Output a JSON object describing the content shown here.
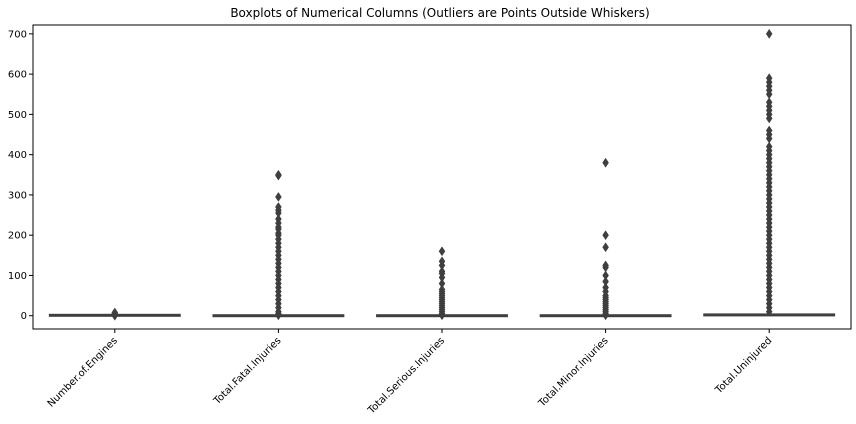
{
  "chart_data": {
    "type": "boxplot",
    "title": "Boxplots of Numerical Columns (Outliers are Points Outside Whiskers)",
    "xlabel": "",
    "ylabel": "",
    "ylim": [
      -33,
      722
    ],
    "yticks": [
      0,
      100,
      200,
      300,
      400,
      500,
      600,
      700
    ],
    "grid": false,
    "legend": "none",
    "box_color": "#3f3f3f",
    "categories": [
      "Number.of.Engines",
      "Total.Fatal.Injuries",
      "Total.Serious.Injuries",
      "Total.Minor.Injuries",
      "Total.Uninjured"
    ],
    "series": [
      {
        "q1": 1,
        "median": 1,
        "q3": 1,
        "whisker_low": 1,
        "whisker_high": 1,
        "outliers": [
          0,
          2,
          3,
          4,
          6,
          8
        ]
      },
      {
        "q1": 0,
        "median": 0,
        "q3": 0,
        "whisker_low": 0,
        "whisker_high": 0,
        "outliers": [
          1,
          5,
          10,
          20,
          30,
          40,
          50,
          60,
          70,
          80,
          90,
          100,
          110,
          120,
          130,
          140,
          150,
          160,
          170,
          180,
          190,
          200,
          205,
          215,
          220,
          230,
          240,
          255,
          262,
          270,
          295,
          348,
          350
        ]
      },
      {
        "q1": 0,
        "median": 0,
        "q3": 0,
        "whisker_low": 0,
        "whisker_high": 0,
        "outliers": [
          1,
          5,
          10,
          15,
          20,
          25,
          30,
          35,
          40,
          45,
          50,
          55,
          60,
          65,
          80,
          95,
          105,
          110,
          125,
          135,
          160
        ]
      },
      {
        "q1": 0,
        "median": 0,
        "q3": 0,
        "whisker_low": 0,
        "whisker_high": 0,
        "outliers": [
          1,
          5,
          10,
          15,
          20,
          25,
          30,
          35,
          40,
          45,
          50,
          60,
          70,
          85,
          100,
          120,
          125,
          170,
          200,
          380
        ]
      },
      {
        "q1": 0,
        "median": 1,
        "q3": 2,
        "whisker_low": 0,
        "whisker_high": 5,
        "outliers": [
          10,
          20,
          30,
          40,
          50,
          60,
          70,
          80,
          90,
          100,
          110,
          120,
          130,
          140,
          150,
          160,
          170,
          180,
          190,
          200,
          210,
          220,
          230,
          240,
          250,
          260,
          270,
          280,
          290,
          300,
          310,
          320,
          330,
          340,
          350,
          360,
          370,
          380,
          390,
          400,
          410,
          420,
          440,
          450,
          460,
          490,
          500,
          510,
          520,
          530,
          550,
          560,
          570,
          580,
          590,
          700
        ]
      }
    ]
  }
}
